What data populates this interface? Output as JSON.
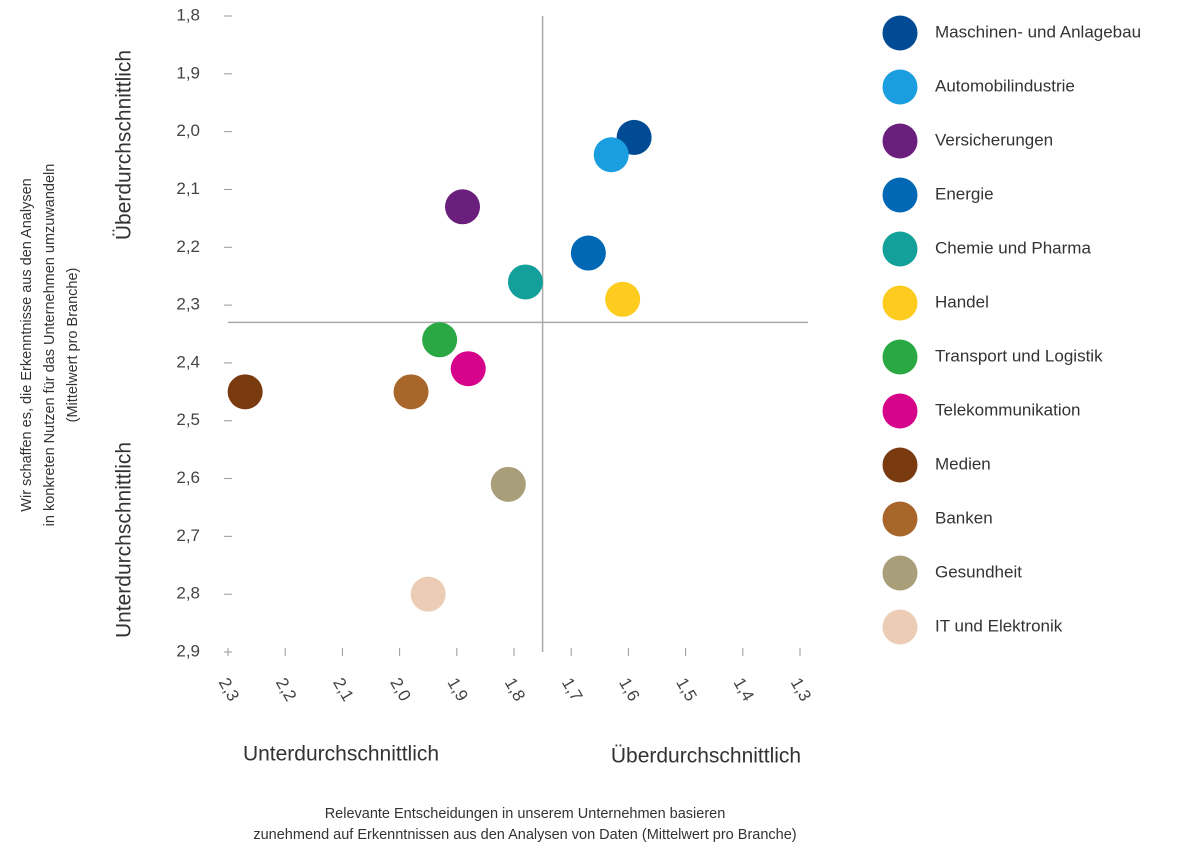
{
  "chart_data": {
    "type": "scatter",
    "xlabel": [
      "Relevante Entscheidungen in unserem Unternehmen basieren",
      "zunehmend auf Erkenntnissen aus den Analysen von Daten (Mittelwert pro Branche)"
    ],
    "ylabel": [
      "Wir schaffen es, die Erkenntnisse aus den Analysen",
      "in konkreten Nutzen für das Unternehmen umzuwandeln",
      "(Mittelwert pro Branche)"
    ],
    "annotations": {
      "y_top": "Überdurchschnittlich",
      "y_bottom": "Unterdurchschnittlich",
      "x_left": "Unterdurchschnittlich",
      "x_right": "Überdurchschnittlich"
    },
    "xlim": [
      2.3,
      1.3
    ],
    "ylim": [
      2.9,
      1.8
    ],
    "xticks": [
      {
        "value": 2.3,
        "label": "2,3"
      },
      {
        "value": 2.2,
        "label": "2,2"
      },
      {
        "value": 2.1,
        "label": "2,1"
      },
      {
        "value": 2.0,
        "label": "2,0"
      },
      {
        "value": 1.9,
        "label": "1,9"
      },
      {
        "value": 1.8,
        "label": "1,8"
      },
      {
        "value": 1.7,
        "label": "1,7"
      },
      {
        "value": 1.6,
        "label": "1,6"
      },
      {
        "value": 1.5,
        "label": "1,5"
      },
      {
        "value": 1.4,
        "label": "1,4"
      },
      {
        "value": 1.3,
        "label": "1,3"
      }
    ],
    "yticks": [
      {
        "value": 1.8,
        "label": "1,8"
      },
      {
        "value": 1.9,
        "label": "1,9"
      },
      {
        "value": 2.0,
        "label": "2,0"
      },
      {
        "value": 2.1,
        "label": "2,1"
      },
      {
        "value": 2.2,
        "label": "2,2"
      },
      {
        "value": 2.3,
        "label": "2,3"
      },
      {
        "value": 2.4,
        "label": "2,4"
      },
      {
        "value": 2.5,
        "label": "2,5"
      },
      {
        "value": 2.6,
        "label": "2,6"
      },
      {
        "value": 2.7,
        "label": "2,7"
      },
      {
        "value": 2.8,
        "label": "2,8"
      },
      {
        "value": 2.9,
        "label": "2,9"
      }
    ],
    "reference_lines": {
      "x": 1.75,
      "y": 2.33
    },
    "grid": false,
    "legend": "right",
    "series": [
      {
        "name": "Maschinen- und Anlagebau",
        "color": "#004b93",
        "x": [
          1.59
        ],
        "values": [
          2.01
        ]
      },
      {
        "name": "Automobilindustrie",
        "color": "#1a9ee0",
        "x": [
          1.63
        ],
        "values": [
          2.04
        ]
      },
      {
        "name": "Versicherungen",
        "color": "#6a1f7d",
        "x": [
          1.89
        ],
        "values": [
          2.13
        ]
      },
      {
        "name": "Energie",
        "color": "#0068b4",
        "x": [
          1.67
        ],
        "values": [
          2.21
        ]
      },
      {
        "name": "Chemie und Pharma",
        "color": "#14a09a",
        "x": [
          1.78
        ],
        "values": [
          2.26
        ]
      },
      {
        "name": "Handel",
        "color": "#fdcc1f",
        "x": [
          1.61
        ],
        "values": [
          2.29
        ]
      },
      {
        "name": "Transport und Logistik",
        "color": "#2aa843",
        "x": [
          1.93
        ],
        "values": [
          2.36
        ]
      },
      {
        "name": "Telekommunikation",
        "color": "#d6048a",
        "x": [
          1.88
        ],
        "values": [
          2.41
        ]
      },
      {
        "name": "Medien",
        "color": "#7a3a10",
        "x": [
          2.27
        ],
        "values": [
          2.45
        ]
      },
      {
        "name": "Banken",
        "color": "#a8662a",
        "x": [
          1.98
        ],
        "values": [
          2.45
        ]
      },
      {
        "name": "Gesundheit",
        "color": "#a89e7a",
        "x": [
          1.81
        ],
        "values": [
          2.61
        ]
      },
      {
        "name": "IT und Elektronik",
        "color": "#ecccb4",
        "x": [
          1.95
        ],
        "values": [
          2.8
        ]
      }
    ]
  }
}
